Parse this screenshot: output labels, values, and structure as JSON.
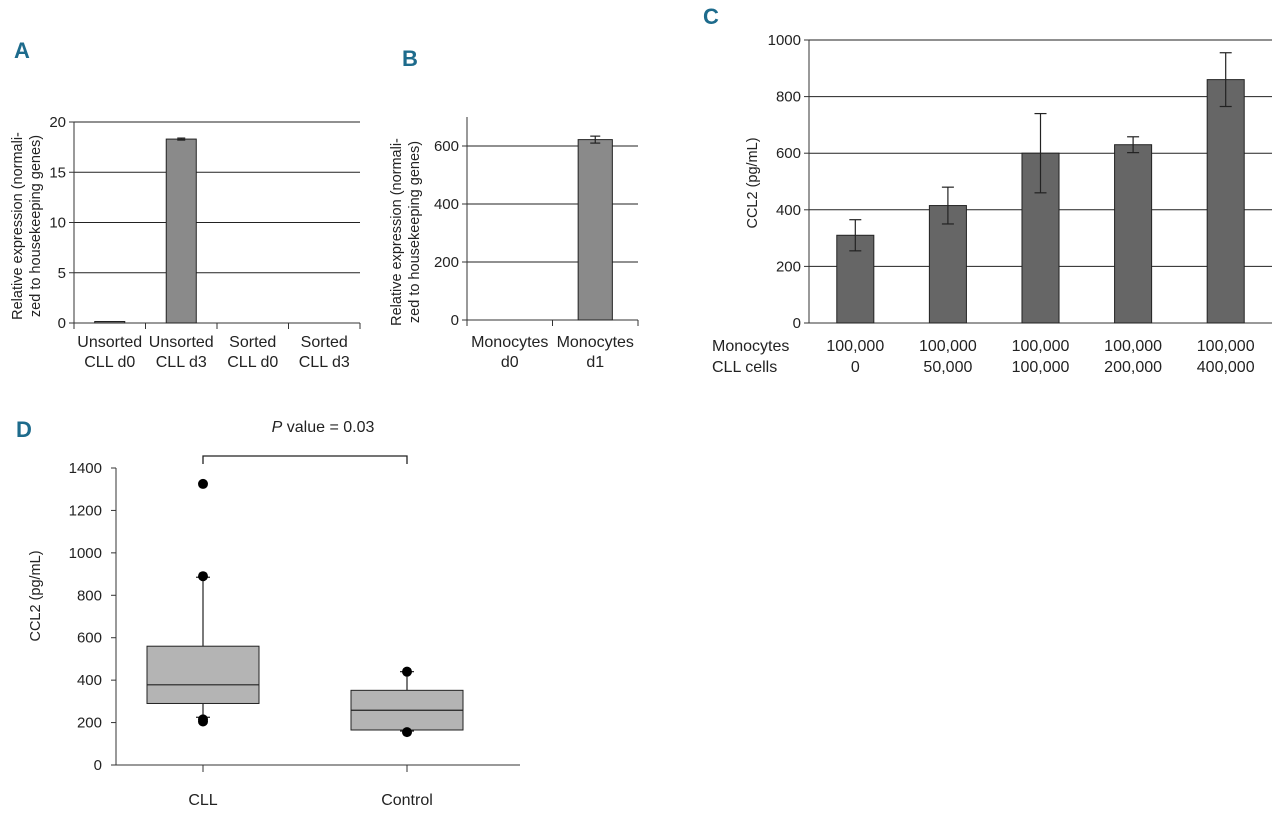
{
  "panel_letters": [
    "A",
    "B",
    "C",
    "D"
  ],
  "colors": {
    "panel_letter": "#1d6b8c",
    "bar_light": "#8a8a8a",
    "bar_dark": "#666666",
    "box_fill": "#b4b4b4"
  },
  "chart_data": [
    {
      "panel": "A",
      "type": "bar",
      "ylabel_lines": [
        "Relative expression (normali-",
        "zed to housekeeping genes)"
      ],
      "ylim": [
        0,
        20
      ],
      "yticks": [
        0,
        5,
        10,
        15,
        20
      ],
      "grid": true,
      "categories": [
        [
          "Unsorted",
          "CLL d0"
        ],
        [
          "Unsorted",
          "CLL d3"
        ],
        [
          "Sorted",
          "CLL d0"
        ],
        [
          "Sorted",
          "CLL d3"
        ]
      ],
      "values": [
        0.15,
        18.3,
        0,
        0
      ],
      "errors": [
        0,
        0.1,
        0,
        0
      ]
    },
    {
      "panel": "B",
      "type": "bar",
      "ylabel_lines": [
        "Relative expression (normali-",
        "zed to housekeeping genes)"
      ],
      "ylim": [
        0,
        700
      ],
      "yticks": [
        0,
        200,
        400,
        600
      ],
      "grid": true,
      "categories": [
        [
          "Monocytes",
          "d0"
        ],
        [
          "Monocytes",
          "d1"
        ]
      ],
      "values": [
        0,
        622
      ],
      "errors": [
        0,
        12
      ]
    },
    {
      "panel": "C",
      "type": "bar",
      "ylabel": "CCL2 (pg/mL)",
      "ylim": [
        0,
        1000
      ],
      "yticks": [
        0,
        200,
        400,
        600,
        800,
        1000
      ],
      "grid": true,
      "row_labels": [
        "Monocytes",
        "CLL cells"
      ],
      "categories": [
        [
          "100,000",
          "0"
        ],
        [
          "100,000",
          "50,000"
        ],
        [
          "100,000",
          "100,000"
        ],
        [
          "100,000",
          "200,000"
        ],
        [
          "100,000",
          "400,000"
        ]
      ],
      "values": [
        310,
        415,
        600,
        630,
        860
      ],
      "errors": [
        55,
        65,
        140,
        28,
        95
      ]
    },
    {
      "panel": "D",
      "type": "box",
      "ylabel": "CCL2 (pg/mL)",
      "ylim": [
        0,
        1400
      ],
      "yticks": [
        0,
        200,
        400,
        600,
        800,
        1000,
        1200,
        1400
      ],
      "categories": [
        "CLL",
        "Control"
      ],
      "boxes": [
        {
          "name": "CLL",
          "q1": 290,
          "median": 378,
          "q3": 560,
          "whisker_low": 225,
          "whisker_high": 885,
          "outliers": [
            1325,
            890,
            215,
            205
          ]
        },
        {
          "name": "Control",
          "q1": 165,
          "median": 258,
          "q3": 352,
          "whisker_low": 160,
          "whisker_high": 440,
          "outliers": [
            440,
            155
          ]
        }
      ],
      "annotation": {
        "italic": "P",
        "text": " value = 0.03"
      }
    }
  ]
}
